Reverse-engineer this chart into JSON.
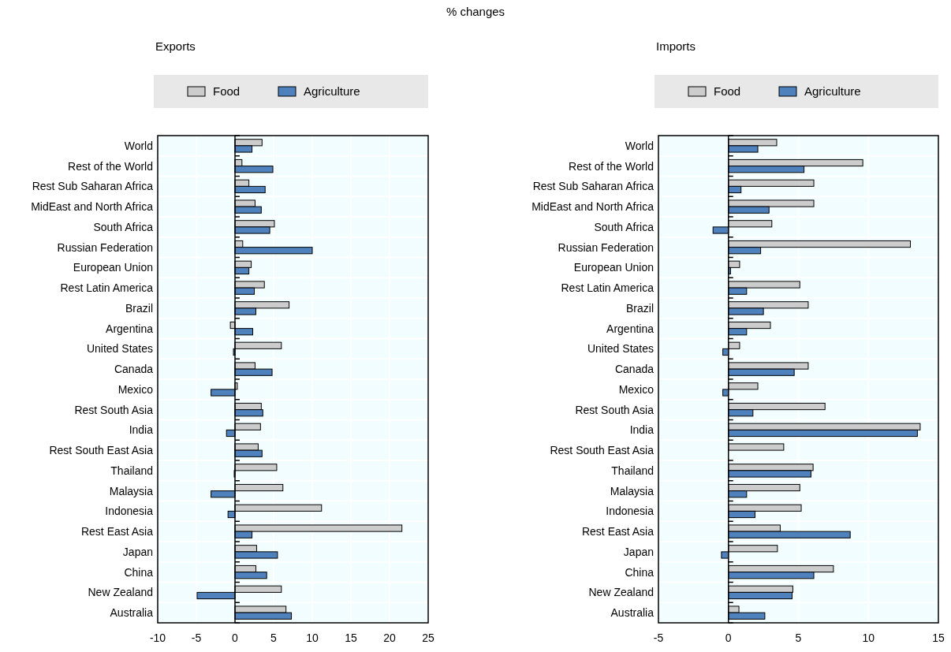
{
  "chart_data": [
    {
      "type": "bar",
      "orientation": "horizontal",
      "title": "Exports",
      "annotations": [
        "% changes"
      ],
      "categories": [
        "World",
        "Rest of the World",
        "Rest Sub Saharan Africa",
        "MidEast and North Africa",
        "South Africa",
        "Russian Federation",
        "European Union",
        "Rest Latin America",
        "Brazil",
        "Argentina",
        "United States",
        "Canada",
        "Mexico",
        "Rest South Asia",
        "India",
        "Rest South East Asia",
        "Thailand",
        "Malaysia",
        "Indonesia",
        "Rest East Asia",
        "Japan",
        "China",
        "New Zealand",
        "Australia"
      ],
      "series": [
        {
          "name": "Food",
          "color": "#cccccc",
          "values": [
            3.5,
            0.9,
            1.8,
            2.6,
            5.1,
            1.0,
            2.1,
            3.8,
            7.0,
            -0.6,
            6.0,
            2.6,
            0.3,
            3.4,
            3.3,
            3.0,
            5.4,
            6.2,
            11.2,
            21.6,
            2.8,
            2.7,
            6.0,
            6.6
          ]
        },
        {
          "name": "Agriculture",
          "color": "#4f81bd",
          "values": [
            2.2,
            4.9,
            3.9,
            3.4,
            4.5,
            10.0,
            1.8,
            2.5,
            2.7,
            2.3,
            -0.2,
            4.8,
            -3.1,
            3.6,
            -1.1,
            3.5,
            -0.1,
            -3.1,
            -0.9,
            2.2,
            5.5,
            4.1,
            -4.9,
            7.3
          ]
        }
      ],
      "xlim": [
        -10,
        25
      ],
      "xticks": [
        -10,
        -5,
        0,
        5,
        10,
        15,
        20,
        25
      ],
      "grid": true,
      "legend": "top"
    },
    {
      "type": "bar",
      "orientation": "horizontal",
      "title": "Imports",
      "categories": [
        "World",
        "Rest of the World",
        "Rest Sub Saharan Africa",
        "MidEast and North Africa",
        "South Africa",
        "Russian Federation",
        "European Union",
        "Rest Latin America",
        "Brazil",
        "Argentina",
        "United States",
        "Canada",
        "Mexico",
        "Rest South Asia",
        "India",
        "Rest South East Asia",
        "Thailand",
        "Malaysia",
        "Indonesia",
        "Rest East Asia",
        "Japan",
        "China",
        "New Zealand",
        "Australia"
      ],
      "series": [
        {
          "name": "Food",
          "color": "#cccccc",
          "values": [
            3.45,
            9.6,
            6.1,
            6.1,
            3.1,
            13.0,
            0.8,
            5.1,
            5.7,
            3.0,
            0.8,
            5.7,
            2.1,
            6.9,
            13.7,
            3.95,
            6.05,
            5.1,
            5.2,
            3.7,
            3.5,
            7.5,
            4.6,
            0.75
          ]
        },
        {
          "name": "Agriculture",
          "color": "#4f81bd",
          "values": [
            2.1,
            5.4,
            0.9,
            2.9,
            -1.1,
            2.3,
            0.15,
            1.3,
            2.5,
            1.3,
            -0.4,
            4.7,
            -0.4,
            1.75,
            13.5,
            0,
            5.9,
            1.3,
            1.9,
            8.7,
            -0.5,
            6.1,
            4.55,
            2.6
          ]
        }
      ],
      "xlim": [
        -5,
        15
      ],
      "xticks": [
        -5,
        0,
        5,
        10,
        15
      ],
      "grid": true,
      "legend": "top"
    }
  ]
}
